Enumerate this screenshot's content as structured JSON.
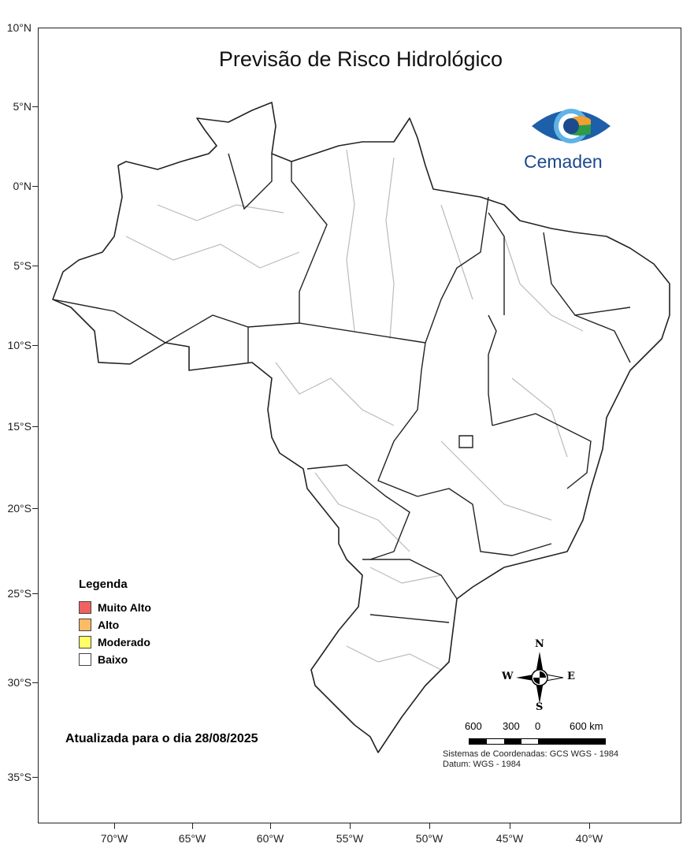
{
  "title": "Previsão de Risco Hidrológico",
  "logo_text": "Cemaden",
  "lat_labels": [
    "10°N",
    "5°N",
    "0°N",
    "5°S",
    "10°S",
    "15°S",
    "20°S",
    "25°S",
    "30°S",
    "35°S"
  ],
  "lon_labels": [
    "70°W",
    "65°W",
    "60°W",
    "55°W",
    "50°W",
    "45°W",
    "40°W"
  ],
  "legend": {
    "title": "Legenda",
    "items": [
      {
        "label": "Muito Alto",
        "color": "#f26060"
      },
      {
        "label": "Alto",
        "color": "#fdbb63"
      },
      {
        "label": "Moderado",
        "color": "#ffff66"
      },
      {
        "label": "Baixo",
        "color": "#ffffff"
      }
    ]
  },
  "updated": "Atualizada para o dia 28/08/2025",
  "compass": {
    "n": "N",
    "s": "S",
    "e": "E",
    "w": "W"
  },
  "scale": {
    "labels": [
      "600",
      "300",
      "0",
      "600 km"
    ]
  },
  "crs": {
    "line1": "Sistemas de Coordenadas: GCS WGS - 1984",
    "line2": "Datum: WGS - 1984"
  }
}
